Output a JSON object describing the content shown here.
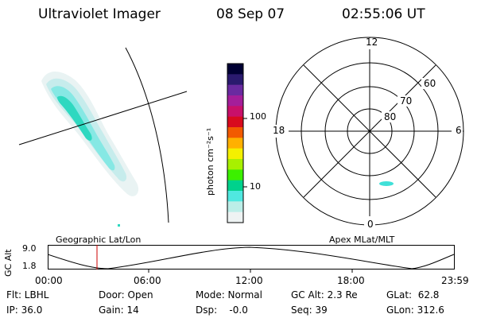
{
  "header": {
    "instrument": "Ultraviolet Imager",
    "date": "08 Sep 07",
    "time": "02:55:06 UT"
  },
  "colorbar": {
    "label": "photon cm⁻²s⁻¹",
    "ticks": [
      "100",
      "10"
    ],
    "colors": [
      "#000033",
      "#2a1a6e",
      "#6a2aa0",
      "#a41e9a",
      "#c8106a",
      "#d80a1e",
      "#f25a00",
      "#ffb000",
      "#f4f000",
      "#a8f000",
      "#3cf000",
      "#00d28c",
      "#50e8e0",
      "#bceee8",
      "#eef3f3"
    ]
  },
  "polar": {
    "mlt_labels": {
      "top": "12",
      "left": "18",
      "right": "6",
      "bottom": "0"
    },
    "lat_labels": [
      "60",
      "70",
      "80"
    ]
  },
  "timeline": {
    "left_label": "Geographic Lat/Lon",
    "right_label": "Apex  MLat/MLT",
    "axis_title": "GC Alt",
    "y_top": "9.0",
    "y_bottom": "1.8",
    "x_ticks": [
      "00:00",
      "06:00",
      "12:00",
      "18:00",
      "23:59"
    ],
    "marker_color": "#cc0000"
  },
  "info": {
    "filter": "Flt: LBHL",
    "ip": "IP: 36.0",
    "door": "Door: Open",
    "gain": "Gain: 14",
    "mode": "Mode: Normal",
    "dsp": "Dsp:    -0.0",
    "gc_alt": "GC Alt: 2.3 Re",
    "seq": "Seq: 39",
    "glat": "GLat:  62.8",
    "glon": "GLon: 312.6"
  }
}
